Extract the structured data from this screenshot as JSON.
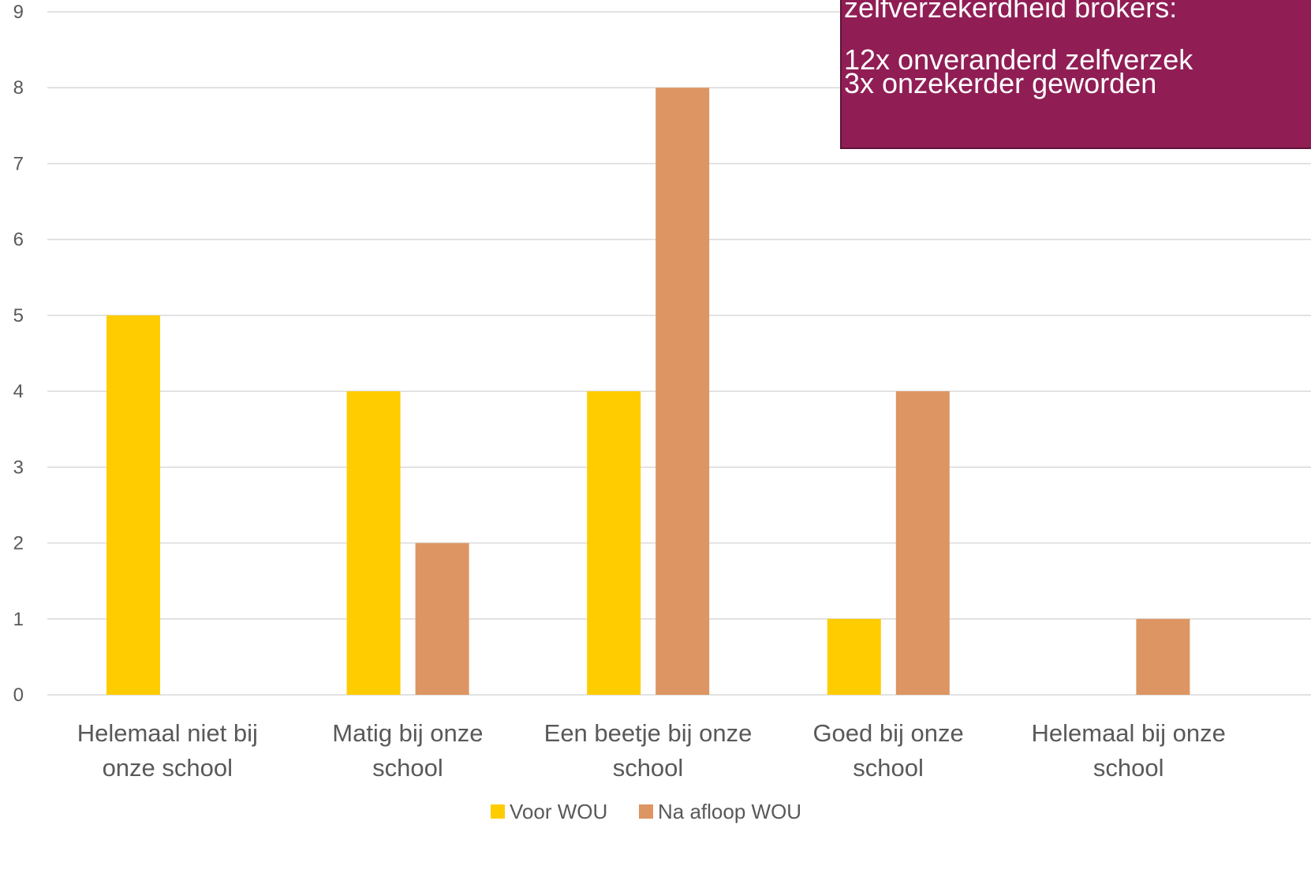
{
  "chart_data": {
    "type": "bar",
    "categories": [
      [
        "Helemaal niet bij",
        "onze school"
      ],
      [
        "Matig bij onze",
        "school"
      ],
      [
        "Een beetje bij onze",
        "school"
      ],
      [
        "Goed bij onze",
        "school"
      ],
      [
        "Helemaal bij onze",
        "school"
      ]
    ],
    "series": [
      {
        "name": "Voor WOU",
        "color": "#FFCC00",
        "values": [
          5,
          4,
          4,
          1,
          0
        ]
      },
      {
        "name": "Na afloop WOU",
        "color": "#DD9563",
        "values": [
          0,
          2,
          8,
          4,
          1
        ]
      }
    ],
    "ylim": [
      0,
      9
    ],
    "yticks": [
      0,
      1,
      2,
      3,
      4,
      5,
      6,
      7,
      8,
      9
    ],
    "grid": true,
    "legend_position": "bottom",
    "title": "",
    "xlabel": "",
    "ylabel": ""
  },
  "callout": {
    "lines": [
      "zelfverzekerdheid brokers:",
      "12x onveranderd zelfverzek",
      "3x onzekerder geworden"
    ],
    "background": "#901E55"
  }
}
